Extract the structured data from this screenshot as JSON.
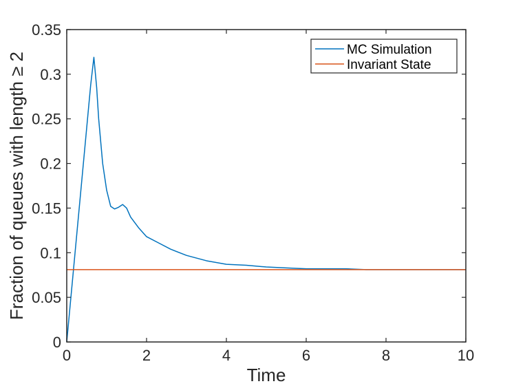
{
  "chart_data": {
    "type": "line",
    "xlabel": "Time",
    "ylabel": "Fraction of queues with length ≥ 2",
    "xlim": [
      0,
      10
    ],
    "ylim": [
      0,
      0.35
    ],
    "xticks": [
      0,
      2,
      4,
      6,
      8,
      10
    ],
    "xtick_labels": [
      "0",
      "2",
      "4",
      "6",
      "8",
      "10"
    ],
    "yticks": [
      0,
      0.05,
      0.1,
      0.15,
      0.2,
      0.25,
      0.3,
      0.35
    ],
    "ytick_labels": [
      "0",
      "0.05",
      "0.1",
      "0.15",
      "0.2",
      "0.25",
      "0.3",
      "0.35"
    ],
    "grid": false,
    "legend_position": "top-right",
    "series": [
      {
        "name": "MC Simulation",
        "color": "#0072BD",
        "x": [
          0,
          0.1,
          0.2,
          0.3,
          0.4,
          0.5,
          0.6,
          0.68,
          0.75,
          0.8,
          0.9,
          1.0,
          1.1,
          1.2,
          1.3,
          1.4,
          1.5,
          1.6,
          1.8,
          2.0,
          2.3,
          2.6,
          3.0,
          3.5,
          4.0,
          4.5,
          5.0,
          5.5,
          6.0,
          6.5,
          7.0,
          7.5,
          8.0,
          8.5,
          9.0,
          9.5,
          10.0
        ],
        "y": [
          0,
          0.048,
          0.096,
          0.144,
          0.192,
          0.24,
          0.288,
          0.319,
          0.285,
          0.25,
          0.2,
          0.17,
          0.152,
          0.149,
          0.151,
          0.154,
          0.15,
          0.14,
          0.128,
          0.118,
          0.111,
          0.104,
          0.097,
          0.091,
          0.087,
          0.086,
          0.084,
          0.083,
          0.082,
          0.082,
          0.082,
          0.081,
          0.081,
          0.081,
          0.081,
          0.081,
          0.081
        ]
      },
      {
        "name": "Invariant State",
        "color": "#D95319",
        "x": [
          0,
          10
        ],
        "y": [
          0.081,
          0.081
        ]
      }
    ]
  }
}
